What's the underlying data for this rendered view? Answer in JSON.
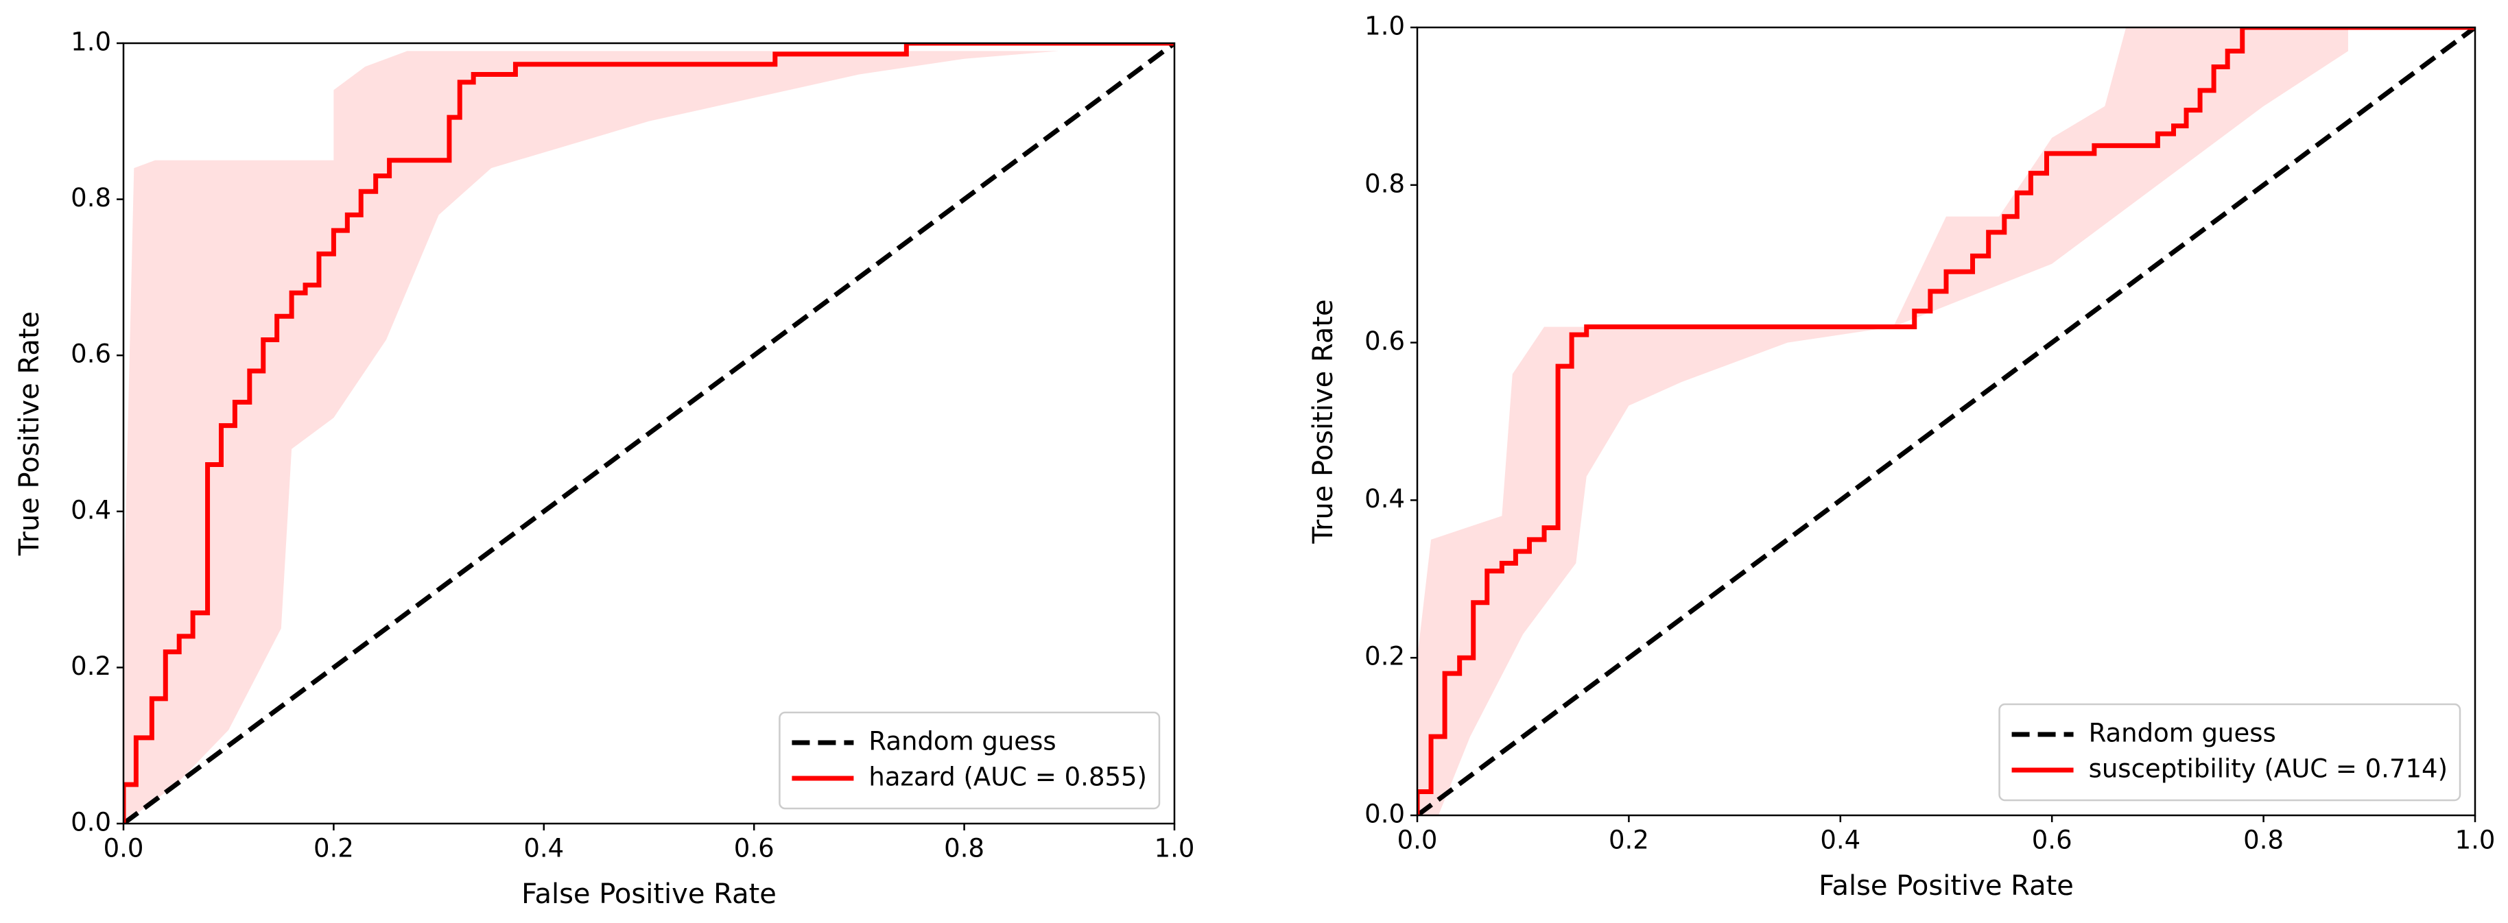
{
  "chart_data": [
    {
      "type": "line",
      "xlabel": "False Positive Rate",
      "ylabel": "True Positive Rate",
      "xlim": [
        0,
        1
      ],
      "ylim": [
        0,
        1
      ],
      "xticks": [
        {
          "value": 0,
          "label": "0.0"
        },
        0.2,
        0.4,
        0.6,
        0.8,
        {
          "value": 1,
          "label": "1.0"
        }
      ],
      "yticks": [
        {
          "value": 0,
          "label": "0.0"
        },
        0.2,
        0.4,
        0.6,
        0.8,
        {
          "value": 1,
          "label": "1.0"
        }
      ],
      "legend": "lower right",
      "band": {
        "color": "#ffe0e0",
        "x_upper": [
          0,
          0.01,
          0.03,
          0.2,
          0.2,
          0.23,
          0.27,
          0.89
        ],
        "upper": [
          0.27,
          0.84,
          0.85,
          0.85,
          0.94,
          0.97,
          0.99,
          0.99
        ],
        "x_lower": [
          0,
          0.05,
          0.1,
          0.15,
          0.16,
          0.2,
          0.25,
          0.3,
          0.35,
          0.4,
          0.5,
          0.6,
          0.7,
          0.8,
          0.89
        ],
        "lower": [
          0,
          0.05,
          0.12,
          0.25,
          0.48,
          0.52,
          0.62,
          0.78,
          0.84,
          0.86,
          0.9,
          0.93,
          0.96,
          0.98,
          0.99
        ]
      },
      "series": [
        {
          "name": "Random guess",
          "color": "#000000",
          "dashed": true,
          "x": [
            0,
            1
          ],
          "values": [
            0,
            1
          ]
        },
        {
          "name": "hazard (AUC = 0.855)",
          "color": "#ff0000",
          "dashed": false,
          "x": [
            0,
            0,
            0.012,
            0.012,
            0.027,
            0.027,
            0.04,
            0.04,
            0.053,
            0.053,
            0.066,
            0.066,
            0.08,
            0.08,
            0.093,
            0.093,
            0.106,
            0.106,
            0.12,
            0.12,
            0.133,
            0.133,
            0.146,
            0.146,
            0.16,
            0.16,
            0.173,
            0.173,
            0.186,
            0.186,
            0.2,
            0.2,
            0.213,
            0.213,
            0.226,
            0.226,
            0.24,
            0.24,
            0.253,
            0.253,
            0.31,
            0.31,
            0.32,
            0.32,
            0.333,
            0.333,
            0.373,
            0.373,
            0.62,
            0.62,
            0.745,
            0.745,
            1
          ],
          "values": [
            0,
            0.05,
            0.05,
            0.11,
            0.11,
            0.16,
            0.16,
            0.22,
            0.22,
            0.24,
            0.24,
            0.27,
            0.27,
            0.46,
            0.46,
            0.51,
            0.51,
            0.54,
            0.54,
            0.58,
            0.58,
            0.62,
            0.62,
            0.65,
            0.65,
            0.68,
            0.68,
            0.69,
            0.69,
            0.73,
            0.73,
            0.76,
            0.76,
            0.78,
            0.78,
            0.81,
            0.81,
            0.83,
            0.83,
            0.85,
            0.85,
            0.905,
            0.905,
            0.95,
            0.95,
            0.96,
            0.96,
            0.973,
            0.973,
            0.986,
            0.986,
            1,
            1
          ]
        }
      ]
    },
    {
      "type": "line",
      "xlabel": "False Positive Rate",
      "ylabel": "True Positive Rate",
      "xlim": [
        0,
        1
      ],
      "ylim": [
        0,
        1
      ],
      "xticks": [
        {
          "value": 0,
          "label": "0.0"
        },
        0.2,
        0.4,
        0.6,
        0.8,
        {
          "value": 1,
          "label": "1.0"
        }
      ],
      "yticks": [
        {
          "value": 0,
          "label": "0.0"
        },
        0.2,
        0.4,
        0.6,
        0.8,
        {
          "value": 1,
          "label": "1.0"
        }
      ],
      "legend": "lower right",
      "band": {
        "color": "#ffe0e0",
        "x_upper": [
          0,
          0.013,
          0.08,
          0.09,
          0.12,
          0.45,
          0.5,
          0.55,
          0.6,
          0.65,
          0.67,
          0.88
        ],
        "upper": [
          0.2,
          0.35,
          0.38,
          0.56,
          0.62,
          0.62,
          0.76,
          0.76,
          0.86,
          0.9,
          1,
          1
        ],
        "x_lower": [
          0,
          0.02,
          0.05,
          0.1,
          0.15,
          0.16,
          0.2,
          0.25,
          0.35,
          0.45,
          0.6,
          0.7,
          0.8,
          0.88
        ],
        "lower": [
          0,
          0,
          0.1,
          0.23,
          0.32,
          0.43,
          0.52,
          0.55,
          0.6,
          0.62,
          0.7,
          0.8,
          0.9,
          0.97
        ]
      },
      "series": [
        {
          "name": "Random guess",
          "color": "#000000",
          "dashed": true,
          "x": [
            0,
            1
          ],
          "values": [
            0,
            1
          ]
        },
        {
          "name": "susceptibility (AUC = 0.714)",
          "color": "#ff0000",
          "dashed": false,
          "x": [
            0,
            0,
            0.013,
            0.013,
            0.026,
            0.026,
            0.04,
            0.04,
            0.053,
            0.053,
            0.066,
            0.066,
            0.08,
            0.08,
            0.093,
            0.093,
            0.106,
            0.106,
            0.12,
            0.12,
            0.133,
            0.133,
            0.146,
            0.146,
            0.16,
            0.16,
            0.47,
            0.47,
            0.485,
            0.485,
            0.5,
            0.5,
            0.525,
            0.525,
            0.54,
            0.54,
            0.555,
            0.555,
            0.567,
            0.567,
            0.58,
            0.58,
            0.595,
            0.595,
            0.64,
            0.64,
            0.7,
            0.7,
            0.715,
            0.715,
            0.727,
            0.727,
            0.74,
            0.74,
            0.753,
            0.753,
            0.766,
            0.766,
            0.78,
            0.78,
            1
          ],
          "values": [
            0,
            0.03,
            0.03,
            0.1,
            0.1,
            0.18,
            0.18,
            0.2,
            0.2,
            0.27,
            0.27,
            0.31,
            0.31,
            0.32,
            0.32,
            0.335,
            0.335,
            0.35,
            0.35,
            0.365,
            0.365,
            0.57,
            0.57,
            0.61,
            0.61,
            0.62,
            0.62,
            0.64,
            0.64,
            0.665,
            0.665,
            0.69,
            0.69,
            0.71,
            0.71,
            0.74,
            0.74,
            0.76,
            0.76,
            0.79,
            0.79,
            0.815,
            0.815,
            0.84,
            0.84,
            0.85,
            0.85,
            0.865,
            0.865,
            0.875,
            0.875,
            0.895,
            0.895,
            0.92,
            0.92,
            0.95,
            0.95,
            0.97,
            0.97,
            1,
            1
          ]
        }
      ]
    }
  ]
}
